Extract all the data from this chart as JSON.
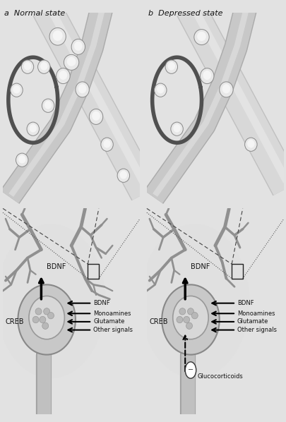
{
  "bg_color": "#e2e2e2",
  "panel_bg_top": "#e8e8e8",
  "panel_bg_bot": "#d8d8d8",
  "title_a": "a  Normal state",
  "title_b": "b  Depressed state",
  "text_color": "#111111",
  "labels_right": [
    "BDNF",
    "Monoamines",
    "Glutamate",
    "Other signals"
  ],
  "label_bdnf": "BDNF",
  "label_creb": "CREB",
  "label_glucocorticoids": "Glucocorticoids",
  "dendrite_dark": "#707070",
  "dendrite_light": "#c8c8c8",
  "axon_fill": "#d0d0d0",
  "axon_edge": "#888888",
  "bouton_fill": "#e8e8e8",
  "bouton_edge": "#999999",
  "loop_color": "#606060",
  "font_size_title": 8,
  "font_size_label": 7,
  "font_size_small": 6
}
